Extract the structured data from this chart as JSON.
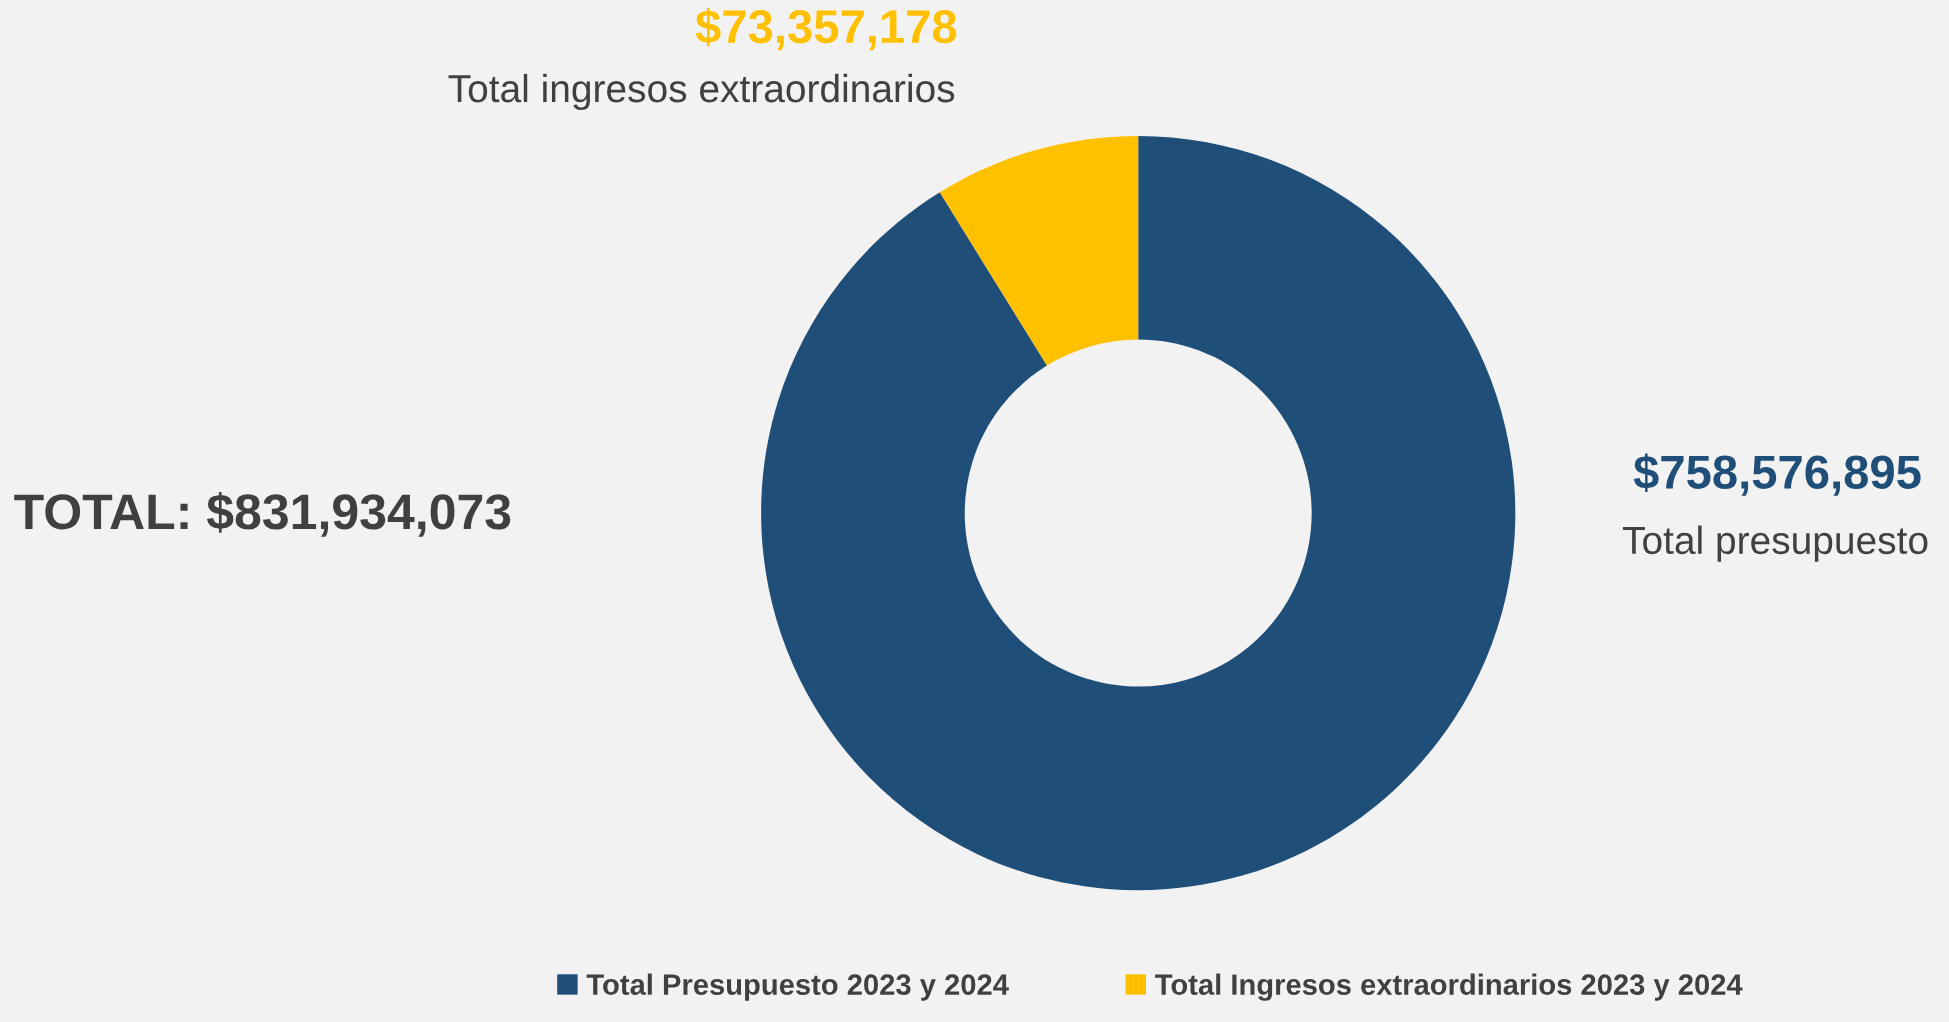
{
  "chart_data": {
    "type": "donut",
    "categories": [
      "Total Presupuesto 2023 y 2024",
      "Total Ingresos extraordinarios 2023 y 2024"
    ],
    "values": [
      758576895,
      73357178
    ],
    "colors": [
      "#1f4e79",
      "#ffc000"
    ],
    "value_labels": [
      "$758,576,895",
      "$73,357,178"
    ],
    "annotations": [
      "Total presupuesto",
      "Total ingresos extraordinarios",
      "TOTAL: $831,934,073"
    ],
    "legend": "bottom"
  }
}
